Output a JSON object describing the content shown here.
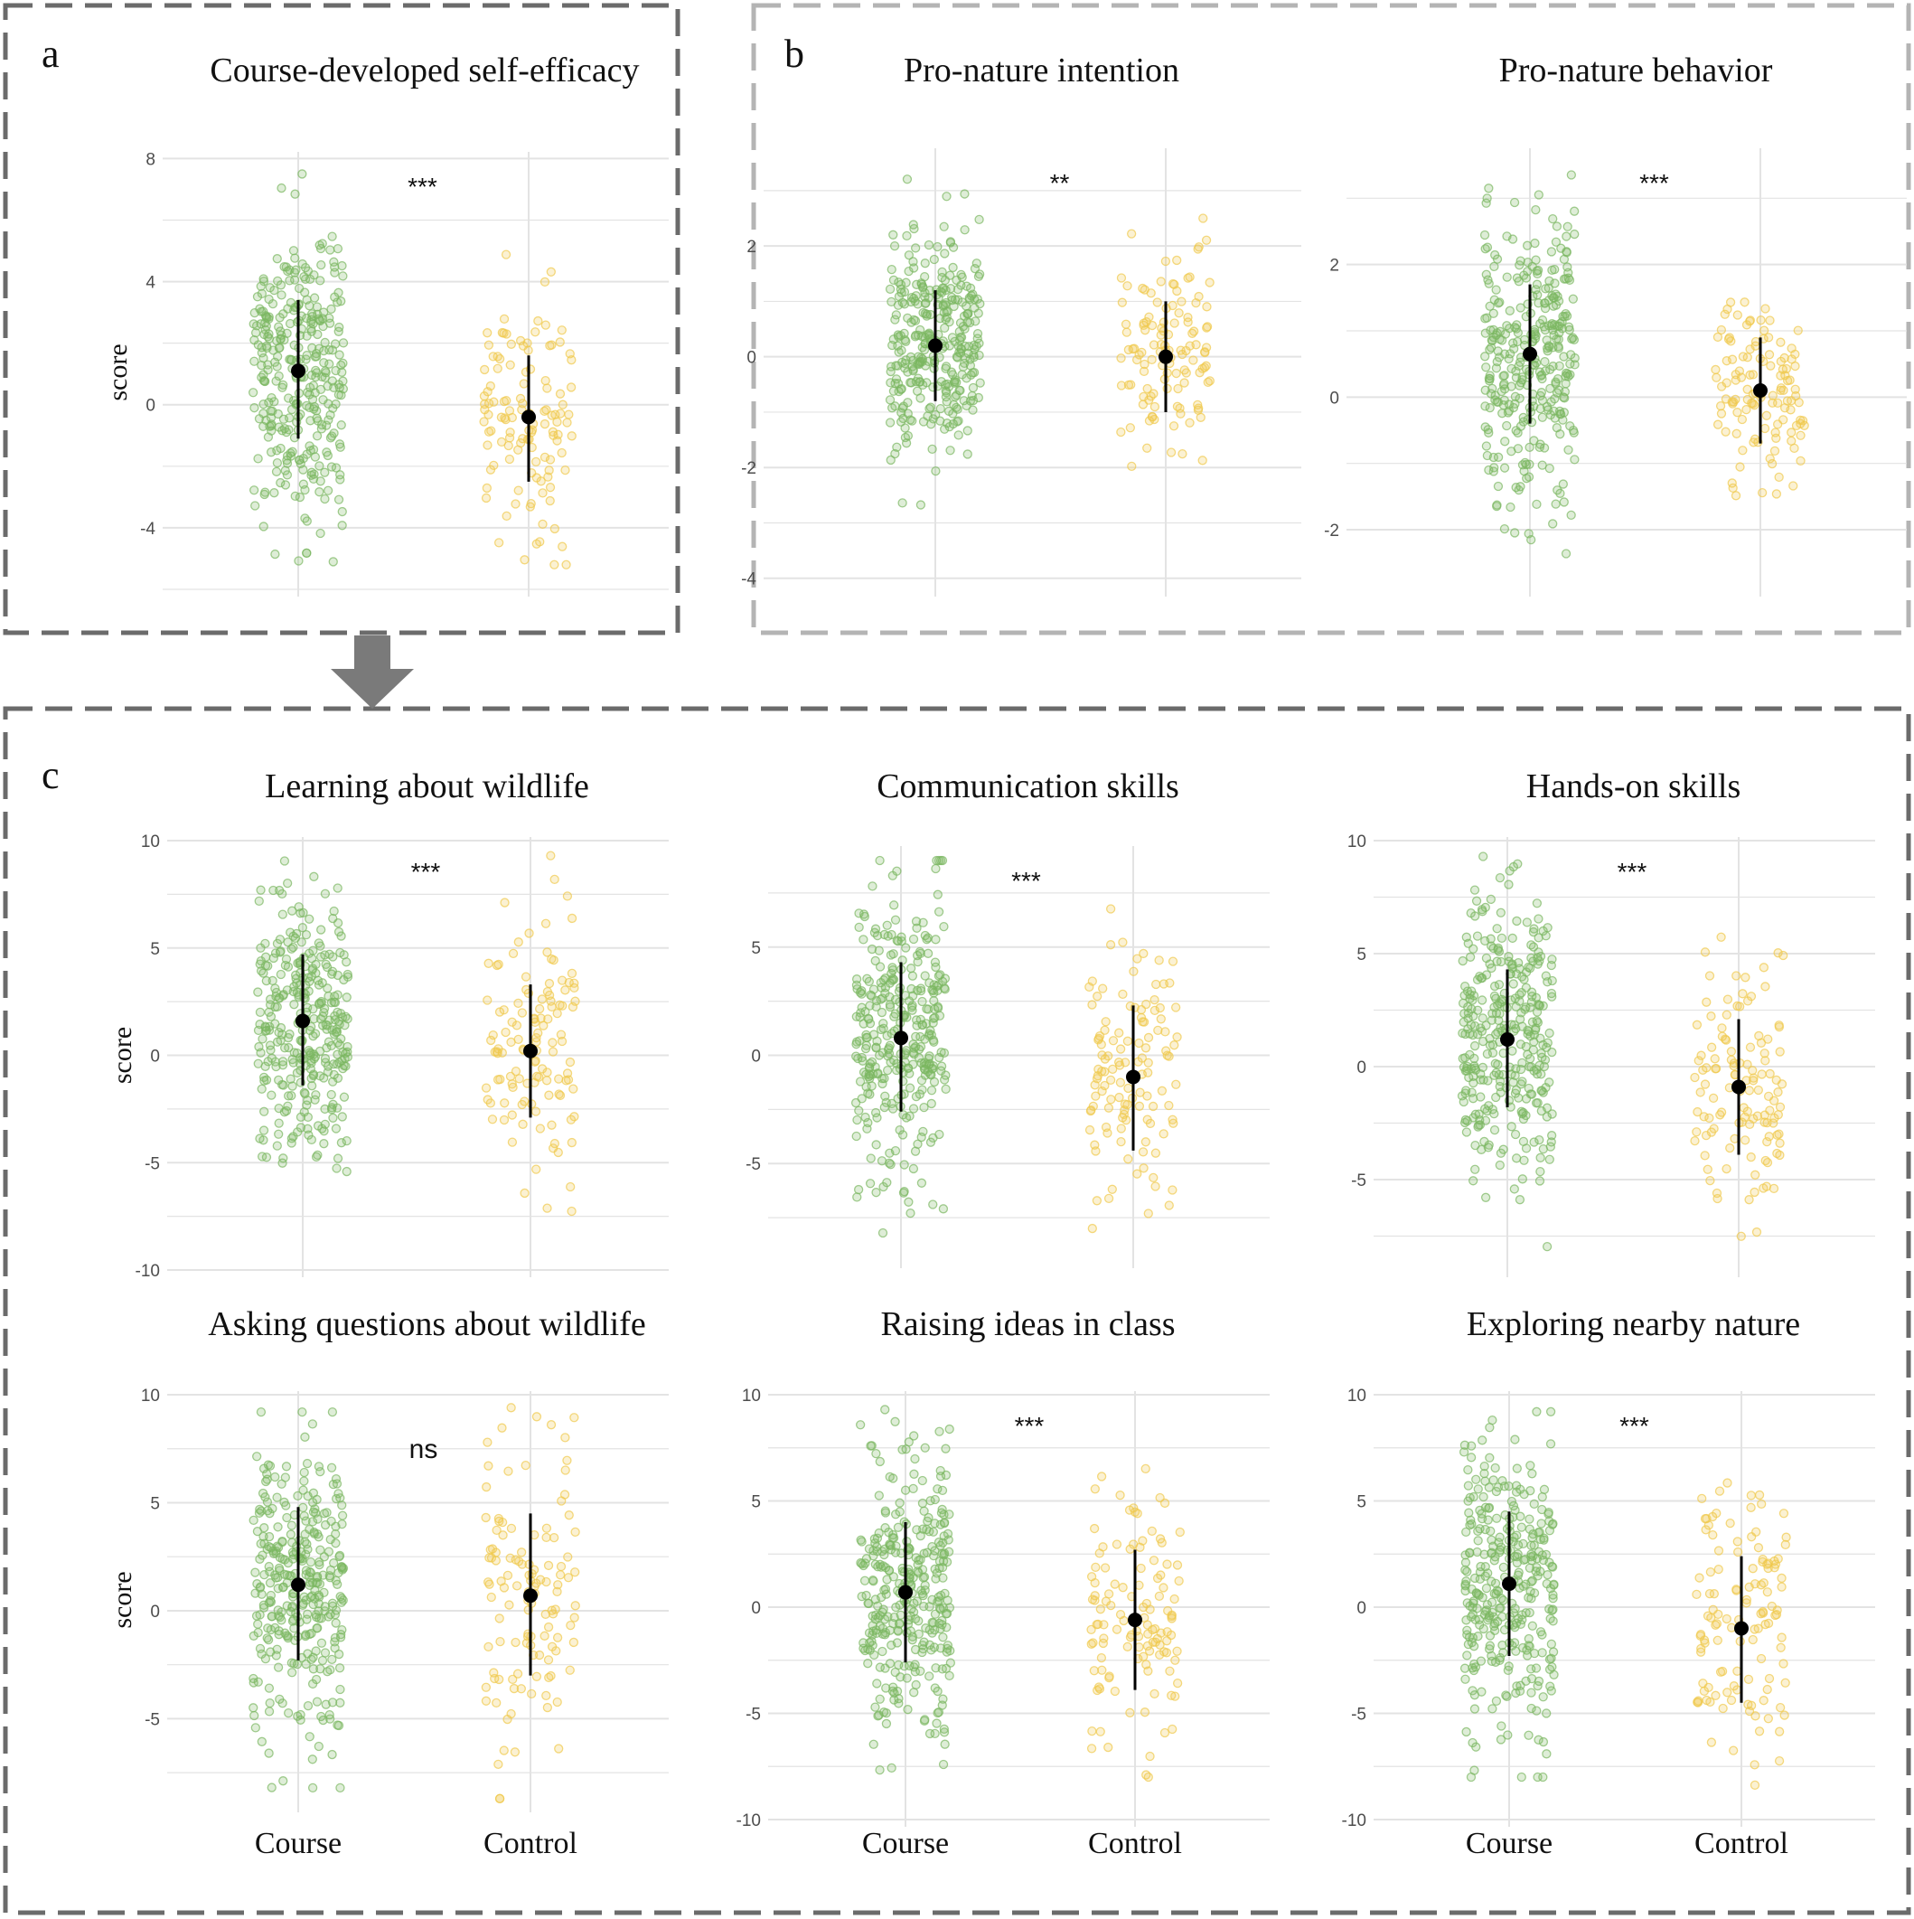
{
  "panels": [
    {
      "letter": "a",
      "arrow": "down-arrow-icon"
    },
    {
      "letter": "b"
    },
    {
      "letter": "c"
    }
  ],
  "colors": {
    "course": "#7bb661",
    "control": "#efc94c",
    "summary": "#000000",
    "frame_dark": "#6b6b6b",
    "frame_light": "#b4b4b4",
    "grid": "#e3e3e3",
    "axis_text": "#4d4d4d"
  },
  "axis": {
    "y_label": "score",
    "categories": [
      "Course",
      "Control"
    ]
  },
  "chart_data": [
    {
      "type": "scatter",
      "panel": "a",
      "title": "Course-developed self-efficacy",
      "ylabel": "score",
      "xlabel": "",
      "categories": [
        "Course",
        "Control"
      ],
      "yticks": [
        8,
        4,
        0,
        -4
      ],
      "ylim": [
        -6,
        8.1
      ],
      "significance": "***",
      "series": [
        {
          "name": "Course",
          "n": 330,
          "mean": 1.1,
          "ci": [
            -1.1,
            3.4
          ],
          "range": [
            -5.8,
            7.5
          ],
          "sd": 2.4
        },
        {
          "name": "Control",
          "n": 120,
          "mean": -0.4,
          "ci": [
            -2.5,
            1.6
          ],
          "range": [
            -5.2,
            5.9
          ],
          "sd": 2.0
        }
      ]
    },
    {
      "type": "scatter",
      "panel": "b",
      "title": "Pro-nature intention",
      "ylabel": "",
      "xlabel": "",
      "categories": [
        "Course",
        "Control"
      ],
      "yticks": [
        2,
        0,
        -2,
        -4
      ],
      "ylim": [
        -4.2,
        3.7
      ],
      "significance": "**",
      "series": [
        {
          "name": "Course",
          "n": 330,
          "mean": 0.2,
          "ci": [
            -0.8,
            1.2
          ],
          "range": [
            -4.0,
            3.4
          ],
          "sd": 1.0
        },
        {
          "name": "Control",
          "n": 120,
          "mean": 0.0,
          "ci": [
            -1.0,
            1.0
          ],
          "range": [
            -4.0,
            2.5
          ],
          "sd": 0.9
        }
      ]
    },
    {
      "type": "scatter",
      "panel": "b",
      "title": "Pro-nature behavior",
      "ylabel": "",
      "xlabel": "",
      "categories": [
        "Course",
        "Control"
      ],
      "yticks": [
        2,
        0,
        -2
      ],
      "ylim": [
        -2.9,
        3.7
      ],
      "significance": "***",
      "series": [
        {
          "name": "Course",
          "n": 330,
          "mean": 0.65,
          "ci": [
            -0.4,
            1.7
          ],
          "range": [
            -2.5,
            3.7
          ],
          "sd": 1.1
        },
        {
          "name": "Control",
          "n": 120,
          "mean": 0.1,
          "ci": [
            -0.7,
            0.9
          ],
          "range": [
            -2.5,
            2.7
          ],
          "sd": 0.8
        }
      ]
    },
    {
      "type": "scatter",
      "panel": "c",
      "title": "Learning about wildlife",
      "ylabel": "score",
      "xlabel": "",
      "categories": [
        "Course",
        "Control"
      ],
      "yticks": [
        10,
        5,
        0,
        -5,
        -10
      ],
      "ylim": [
        -10,
        10
      ],
      "significance": "***",
      "series": [
        {
          "name": "Course",
          "n": 330,
          "mean": 1.6,
          "ci": [
            -1.4,
            4.7
          ],
          "range": [
            -8.9,
            9.3
          ],
          "sd": 3.1
        },
        {
          "name": "Control",
          "n": 120,
          "mean": 0.2,
          "ci": [
            -2.9,
            3.3
          ],
          "range": [
            -9.3,
            9.3
          ],
          "sd": 3.0
        }
      ]
    },
    {
      "type": "scatter",
      "panel": "c",
      "title": "Communication skills",
      "ylabel": "",
      "xlabel": "",
      "categories": [
        "Course",
        "Control"
      ],
      "yticks": [
        5,
        0,
        -5
      ],
      "ylim": [
        -9.5,
        9.5
      ],
      "significance": "***",
      "series": [
        {
          "name": "Course",
          "n": 330,
          "mean": 0.8,
          "ci": [
            -2.6,
            4.3
          ],
          "range": [
            -9.0,
            9.0
          ],
          "sd": 3.4
        },
        {
          "name": "Control",
          "n": 120,
          "mean": -1.0,
          "ci": [
            -4.4,
            2.3
          ],
          "range": [
            -8.0,
            9.0
          ],
          "sd": 3.2
        }
      ]
    },
    {
      "type": "scatter",
      "panel": "c",
      "title": "Hands-on skills",
      "ylabel": "",
      "xlabel": "",
      "categories": [
        "Course",
        "Control"
      ],
      "yticks": [
        10,
        5,
        0,
        -5
      ],
      "ylim": [
        -9,
        10
      ],
      "significance": "***",
      "series": [
        {
          "name": "Course",
          "n": 330,
          "mean": 1.2,
          "ci": [
            -1.8,
            4.3
          ],
          "range": [
            -8.0,
            9.3
          ],
          "sd": 3.1
        },
        {
          "name": "Control",
          "n": 120,
          "mean": -0.9,
          "ci": [
            -3.9,
            2.1
          ],
          "range": [
            -7.8,
            9.2
          ],
          "sd": 3.0
        }
      ]
    },
    {
      "type": "scatter",
      "panel": "c",
      "title": "Asking questions about wildlife",
      "ylabel": "score",
      "xlabel": "",
      "categories": [
        "Course",
        "Control"
      ],
      "yticks": [
        10,
        5,
        0,
        -5
      ],
      "ylim": [
        -9,
        10
      ],
      "significance": "ns",
      "series": [
        {
          "name": "Course",
          "n": 330,
          "mean": 1.2,
          "ci": [
            -2.3,
            4.8
          ],
          "range": [
            -8.2,
            9.2
          ],
          "sd": 3.5
        },
        {
          "name": "Control",
          "n": 120,
          "mean": 0.7,
          "ci": [
            -3.0,
            4.5
          ],
          "range": [
            -8.7,
            9.4
          ],
          "sd": 3.8
        }
      ]
    },
    {
      "type": "scatter",
      "panel": "c",
      "title": "Raising ideas in class",
      "ylabel": "",
      "xlabel": "",
      "categories": [
        "Course",
        "Control"
      ],
      "yticks": [
        10,
        5,
        0,
        -5,
        -10
      ],
      "ylim": [
        -10,
        10
      ],
      "significance": "***",
      "series": [
        {
          "name": "Course",
          "n": 330,
          "mean": 0.7,
          "ci": [
            -2.6,
            4.0
          ],
          "range": [
            -9.2,
            9.3
          ],
          "sd": 3.3
        },
        {
          "name": "Control",
          "n": 120,
          "mean": -0.6,
          "ci": [
            -3.9,
            2.7
          ],
          "range": [
            -8.0,
            8.8
          ],
          "sd": 3.3
        }
      ]
    },
    {
      "type": "scatter",
      "panel": "c",
      "title": "Exploring nearby nature",
      "ylabel": "",
      "xlabel": "",
      "categories": [
        "Course",
        "Control"
      ],
      "yticks": [
        10,
        5,
        0,
        -5,
        -10
      ],
      "ylim": [
        -10,
        10
      ],
      "significance": "***",
      "series": [
        {
          "name": "Course",
          "n": 330,
          "mean": 1.1,
          "ci": [
            -2.3,
            4.5
          ],
          "range": [
            -8.0,
            9.2
          ],
          "sd": 3.4
        },
        {
          "name": "Control",
          "n": 120,
          "mean": -1.0,
          "ci": [
            -4.5,
            2.4
          ],
          "range": [
            -9.3,
            9.3
          ],
          "sd": 3.4
        }
      ]
    }
  ]
}
